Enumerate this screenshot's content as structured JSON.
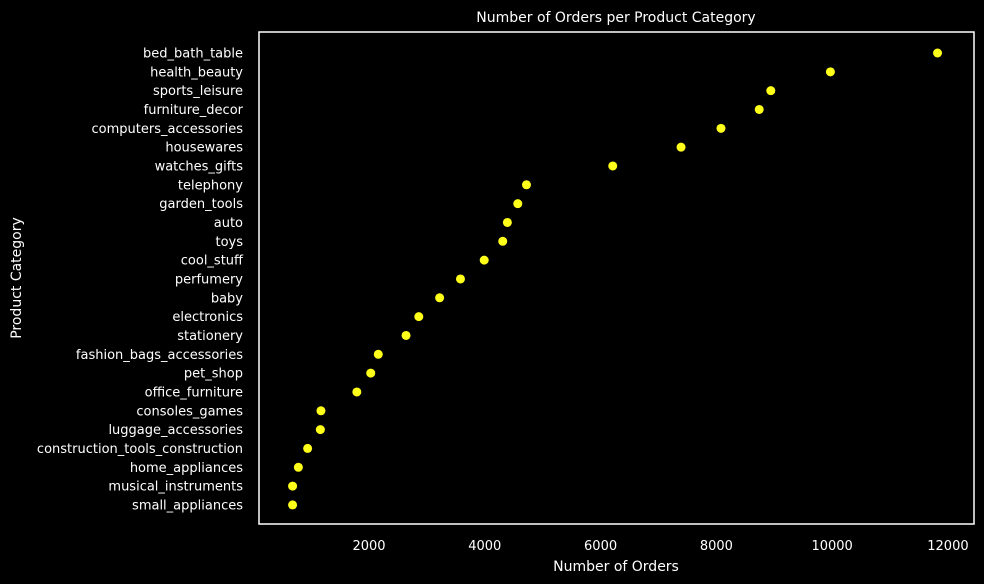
{
  "chart_data": {
    "type": "scatter",
    "title": "Number of Orders per Product Category",
    "xlabel": "Number of Orders",
    "ylabel": "Product Category",
    "xlim": [
      100,
      12450
    ],
    "xticks": [
      2000,
      4000,
      6000,
      8000,
      10000,
      12000
    ],
    "grid": false,
    "legend": "none",
    "colors": {
      "background": "#000000",
      "frame": "#ffffff",
      "point": "#ffff1a",
      "text": "#ffffff"
    },
    "categories": [
      "bed_bath_table",
      "health_beauty",
      "sports_leisure",
      "furniture_decor",
      "computers_accessories",
      "housewares",
      "watches_gifts",
      "telephony",
      "garden_tools",
      "auto",
      "toys",
      "cool_stuff",
      "perfumery",
      "baby",
      "electronics",
      "stationery",
      "fashion_bags_accessories",
      "pet_shop",
      "office_furniture",
      "consoles_games",
      "luggage_accessories",
      "construction_tools_construction",
      "home_appliances",
      "musical_instruments",
      "small_appliances"
    ],
    "values": [
      11820,
      9970,
      8940,
      8740,
      8080,
      7390,
      6210,
      4720,
      4570,
      4390,
      4310,
      3990,
      3580,
      3220,
      2860,
      2640,
      2160,
      2030,
      1790,
      1170,
      1160,
      940,
      780,
      680,
      680
    ]
  }
}
